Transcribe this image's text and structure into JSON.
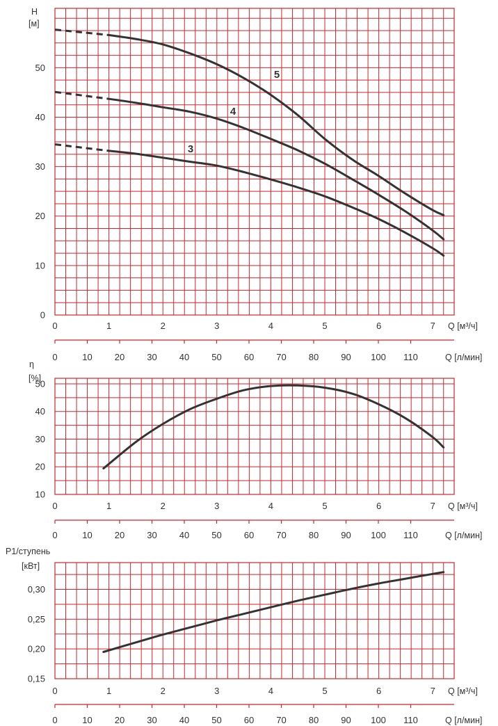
{
  "colors": {
    "grid": "#d2232a",
    "curve": "#333333",
    "text": "#333333"
  },
  "chart_data": [
    {
      "type": "line",
      "ylabel_top": "H",
      "yunit": "[м]",
      "xlabel": "Q [м³/ч]",
      "x2label": "Q [л/мин]",
      "xlim": [
        0,
        7.4
      ],
      "ylim": [
        0,
        62
      ],
      "yticks": [
        0,
        10,
        20,
        30,
        40,
        50
      ],
      "ytick_labels": [
        "0",
        "10",
        "20",
        "30",
        "40",
        "50"
      ],
      "xticks": [
        0,
        1,
        2,
        3,
        4,
        5,
        6,
        7
      ],
      "xtick_labels": [
        "0",
        "1",
        "2",
        "3",
        "4",
        "5",
        "6",
        "7"
      ],
      "x2ticks": [
        0,
        10,
        20,
        30,
        40,
        50,
        60,
        70,
        80,
        90,
        100,
        110
      ],
      "x2tick_labels": [
        "0",
        "10",
        "20",
        "30",
        "40",
        "50",
        "60",
        "70",
        "80",
        "90",
        "100",
        "110"
      ],
      "grid": true,
      "series": [
        {
          "name": "5",
          "dashed": [
            [
              0,
              57.7
            ],
            [
              1,
              56.6
            ]
          ],
          "x": [
            1,
            1.5,
            2,
            2.5,
            3,
            3.5,
            4,
            4.5,
            5,
            5.5,
            6,
            6.5,
            7,
            7.2
          ],
          "y": [
            56.6,
            55.8,
            54.7,
            52.9,
            50.7,
            47.9,
            44.5,
            40.4,
            35.6,
            31.5,
            28.1,
            24.5,
            21.2,
            20.2
          ]
        },
        {
          "name": "4",
          "dashed": [
            [
              0,
              45.1
            ],
            [
              1,
              43.7
            ]
          ],
          "x": [
            1,
            1.5,
            2,
            2.5,
            3,
            3.5,
            4,
            4.5,
            5,
            5.5,
            6,
            6.5,
            7,
            7.2
          ],
          "y": [
            43.7,
            42.9,
            42.0,
            41.1,
            39.7,
            37.8,
            35.6,
            33.3,
            30.6,
            27.5,
            24.3,
            20.9,
            17.1,
            15.3
          ]
        },
        {
          "name": "3",
          "dashed": [
            [
              0,
              34.5
            ],
            [
              1,
              33.2
            ]
          ],
          "x": [
            1,
            1.5,
            2,
            2.5,
            3,
            3.5,
            4,
            4.5,
            5,
            5.5,
            6,
            6.5,
            7,
            7.2
          ],
          "y": [
            33.2,
            32.6,
            31.8,
            31.0,
            30.2,
            28.9,
            27.4,
            25.8,
            24.0,
            21.8,
            19.4,
            16.6,
            13.5,
            12.0
          ]
        }
      ]
    },
    {
      "type": "line",
      "ylabel_top": "η",
      "yunit": "[%]",
      "xlabel": "Q [м³/ч]",
      "x2label": "Q [л/мин]",
      "xlim": [
        0,
        7.4
      ],
      "ylim": [
        10,
        52
      ],
      "yticks": [
        10,
        20,
        30,
        40,
        50
      ],
      "ytick_labels": [
        "10",
        "20",
        "30",
        "40",
        "50"
      ],
      "xticks": [
        0,
        1,
        2,
        3,
        4,
        5,
        6,
        7
      ],
      "xtick_labels": [
        "0",
        "1",
        "2",
        "3",
        "4",
        "5",
        "6",
        "7"
      ],
      "x2ticks": [
        0,
        10,
        20,
        30,
        40,
        50,
        60,
        70,
        80,
        90,
        100,
        110
      ],
      "x2tick_labels": [
        "0",
        "10",
        "20",
        "30",
        "40",
        "50",
        "60",
        "70",
        "80",
        "90",
        "100",
        "110"
      ],
      "grid": true,
      "series": [
        {
          "x": [
            0.9,
            1.5,
            2,
            2.5,
            3,
            3.5,
            4,
            4.5,
            5,
            5.5,
            6,
            6.5,
            7,
            7.2
          ],
          "y": [
            19.4,
            29.0,
            35.5,
            40.8,
            44.6,
            47.7,
            49.2,
            49.4,
            48.6,
            46.5,
            42.6,
            37.5,
            30.7,
            27.0
          ]
        }
      ]
    },
    {
      "type": "line",
      "ylabel_top": "P1/ступень",
      "yunit": "[кВт]",
      "xlabel": "Q [м³/ч]",
      "x2label": "Q [л/мин]",
      "xlim": [
        0,
        7.4
      ],
      "ylim": [
        0.15,
        0.345
      ],
      "yticks": [
        0.15,
        0.2,
        0.25,
        0.3
      ],
      "ytick_labels": [
        "0,15",
        "0,20",
        "0,25",
        "0,30"
      ],
      "xticks": [
        0,
        1,
        2,
        3,
        4,
        5,
        6,
        7
      ],
      "xtick_labels": [
        "0",
        "1",
        "2",
        "3",
        "4",
        "5",
        "6",
        "7"
      ],
      "x2ticks": [
        0,
        10,
        20,
        30,
        40,
        50,
        60,
        70,
        80,
        90,
        100,
        110
      ],
      "x2tick_labels": [
        "0",
        "10",
        "20",
        "30",
        "40",
        "50",
        "60",
        "70",
        "80",
        "90",
        "100",
        "110"
      ],
      "grid": true,
      "series": [
        {
          "x": [
            0.9,
            1.5,
            2,
            2.5,
            3,
            3.5,
            4,
            4.5,
            5,
            5.5,
            6,
            6.5,
            7,
            7.2
          ],
          "y": [
            0.195,
            0.211,
            0.224,
            0.236,
            0.248,
            0.259,
            0.27,
            0.281,
            0.291,
            0.301,
            0.31,
            0.318,
            0.326,
            0.329
          ]
        }
      ]
    }
  ]
}
